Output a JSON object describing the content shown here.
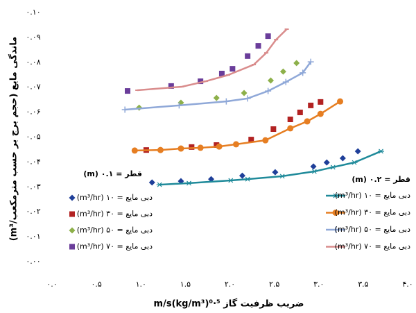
{
  "chart_data": {
    "type": "scatter-line",
    "y_label": "ماندگی مایع (حجم برج بر حسب مترمکعب/m³)",
    "x_label": "ضریب ظرفیت گاز m/s(kg/m³)⁰·⁵",
    "xlim": [
      0,
      4
    ],
    "ylim": [
      0,
      0.1
    ],
    "xticks": [
      {
        "value": 0,
        "label": "۰.۰"
      },
      {
        "value": 0.5,
        "label": "۰.۵"
      },
      {
        "value": 1,
        "label": "۱.۰"
      },
      {
        "value": 1.5,
        "label": "۱.۵"
      },
      {
        "value": 2,
        "label": "۲.۰"
      },
      {
        "value": 2.5,
        "label": "۲.۵"
      },
      {
        "value": 3,
        "label": "۳.۰"
      },
      {
        "value": 3.5,
        "label": "۳.۵"
      },
      {
        "value": 4,
        "label": "۴.۰"
      }
    ],
    "yticks": [
      {
        "value": 0,
        "label": "۰.۰۰"
      },
      {
        "value": 0.01,
        "label": "۰.۰۱"
      },
      {
        "value": 0.02,
        "label": "۰.۰۲"
      },
      {
        "value": 0.03,
        "label": "۰.۰۳"
      },
      {
        "value": 0.04,
        "label": "۰.۰۴"
      },
      {
        "value": 0.05,
        "label": "۰.۰۵"
      },
      {
        "value": 0.06,
        "label": "۰.۰۶"
      },
      {
        "value": 0.07,
        "label": "۰.۰۷"
      },
      {
        "value": 0.08,
        "label": "۰.۰۸"
      },
      {
        "value": 0.09,
        "label": "۰.۰۹"
      },
      {
        "value": 0.1,
        "label": "۰.۱۰"
      }
    ],
    "grid": false,
    "legend_groups": [
      {
        "title": "قطر = ۰.۱ (m)",
        "line": false,
        "series": [
          {
            "name": "دبی مایع = ۱۰ (m³/hr)",
            "color": "#1f3f99",
            "marker": "diamond",
            "x": [
              1.125,
              1.45,
              1.79,
              2.14,
              2.51,
              2.94,
              3.09,
              3.27,
              3.44
            ],
            "values": [
              0.0318,
              0.0323,
              0.0331,
              0.0345,
              0.0359,
              0.0382,
              0.0398,
              0.0415,
              0.0443
            ]
          },
          {
            "name": "دبی مایع = ۳۰ (m³/hr)",
            "color": "#b22222",
            "marker": "square",
            "x": [
              1.06,
              1.57,
              1.85,
              2.24,
              2.49,
              2.68,
              2.79,
              2.91,
              3.02
            ],
            "values": [
              0.0448,
              0.046,
              0.0468,
              0.049,
              0.0532,
              0.0571,
              0.0599,
              0.0627,
              0.0641
            ]
          },
          {
            "name": "دبی مایع = ۵۰ (m³/hr)",
            "color": "#8db04a",
            "marker": "diamond",
            "x": [
              0.98,
              1.45,
              1.85,
              2.16,
              2.46,
              2.6,
              2.75
            ],
            "values": [
              0.0618,
              0.0638,
              0.0657,
              0.0677,
              0.0727,
              0.0763,
              0.0797
            ]
          },
          {
            "name": "دبی مایع = ۷۰ (m³/hr)",
            "color": "#6a3d9a",
            "marker": "square",
            "x": [
              0.85,
              1.34,
              1.67,
              1.91,
              2.03,
              2.2,
              2.32,
              2.43
            ],
            "values": [
              0.0685,
              0.0705,
              0.0724,
              0.0755,
              0.0774,
              0.0825,
              0.0866,
              0.0905
            ]
          }
        ]
      },
      {
        "title": "قطر = ۰.۲ (m)",
        "line": true,
        "series": [
          {
            "name": "دبی مایع = ۱۰ (m³/hr)",
            "color": "#1f8a9a",
            "marker": "asterisk",
            "x": [
              1.21,
              1.54,
              2.01,
              2.2,
              2.59,
              2.95,
              3.16,
              3.4,
              3.7
            ],
            "values": [
              0.0309,
              0.0315,
              0.0326,
              0.0331,
              0.0343,
              0.0362,
              0.0379,
              0.0398,
              0.0443
            ]
          },
          {
            "name": "دبی مایع = ۳۰ (m³/hr)",
            "color": "#e67e22",
            "marker": "circle",
            "x": [
              0.93,
              1.22,
              1.45,
              1.67,
              1.88,
              2.07,
              2.4,
              2.68,
              2.87,
              3.02,
              3.24
            ],
            "values": [
              0.0446,
              0.0448,
              0.0454,
              0.0457,
              0.0462,
              0.0471,
              0.0487,
              0.0535,
              0.0563,
              0.0593,
              0.0643
            ]
          },
          {
            "name": "دبی مایع = ۵۰ (m³/hr)",
            "color": "#8fa8d8",
            "marker": "plus",
            "x": [
              0.82,
              1.43,
              1.96,
              2.2,
              2.43,
              2.63,
              2.82,
              2.91
            ],
            "values": [
              0.061,
              0.0627,
              0.0643,
              0.0655,
              0.0685,
              0.0721,
              0.0758,
              0.0802
            ]
          },
          {
            "name": "دبی مایع = ۷۰ (m³/hr)",
            "color": "#d98c8c",
            "marker": "dash",
            "x": [
              0.96,
              1.46,
              1.73,
              1.98,
              2.27,
              2.41,
              2.52,
              2.64
            ],
            "values": [
              0.0688,
              0.0702,
              0.0724,
              0.0749,
              0.0791,
              0.0838,
              0.0891,
              0.0933
            ]
          }
        ]
      }
    ]
  }
}
